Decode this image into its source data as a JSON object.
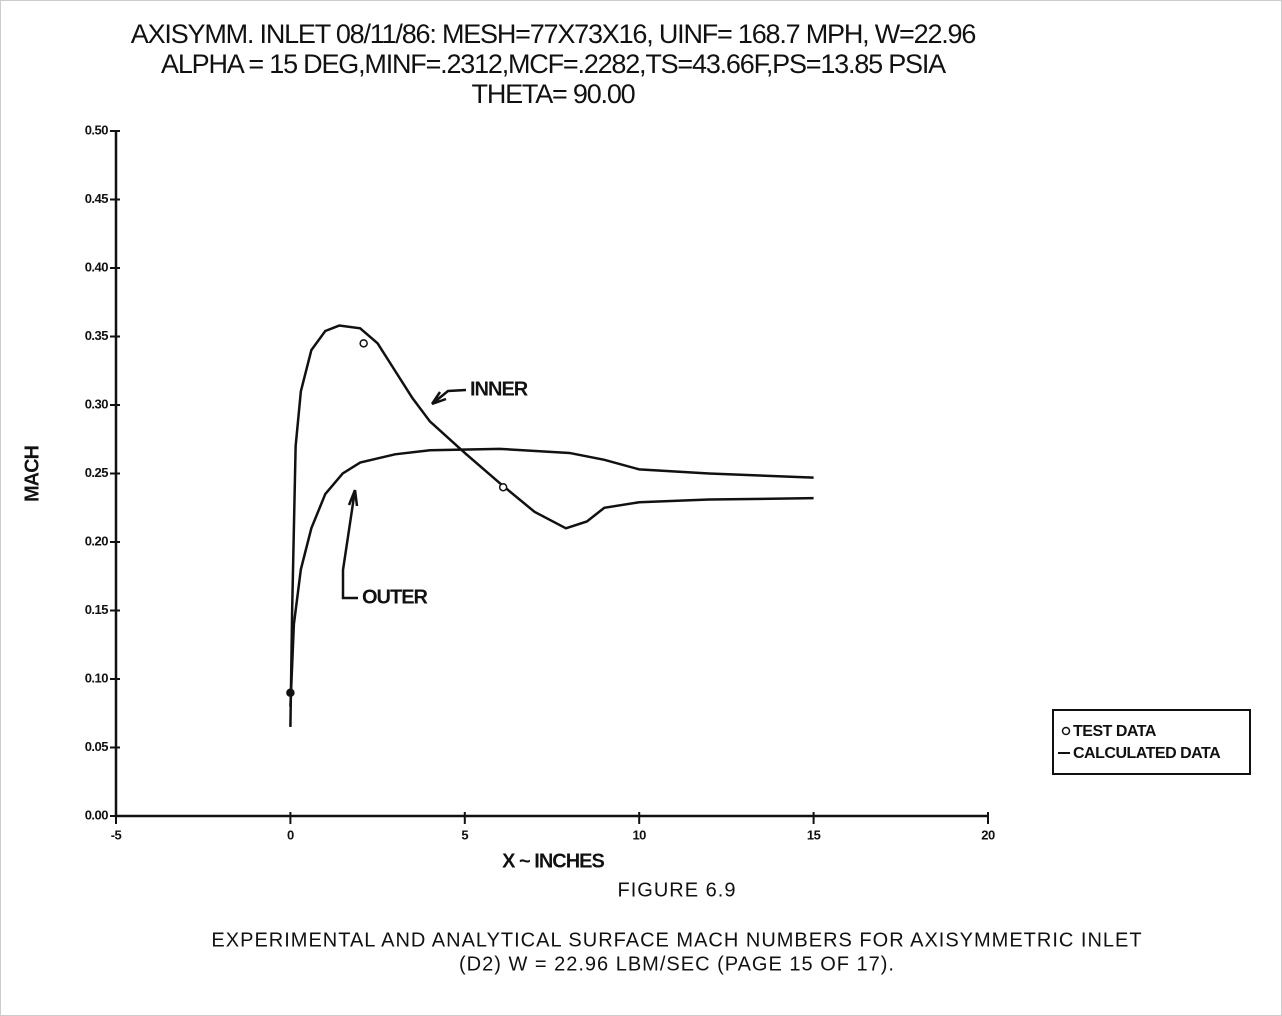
{
  "chart_data": {
    "type": "line",
    "title": [
      "AXISYMM. INLET 08/11/86: MESH=77X73X16, UINF= 168.7 MPH, W=22.96",
      "ALPHA = 15 DEG,MINF=.2312,MCF=.2282,TS=43.66F,PS=13.85 PSIA",
      "THETA=  90.00"
    ],
    "xlabel": "X ~ INCHES",
    "ylabel": "MACH",
    "xlim": [
      -5,
      20
    ],
    "ylim": [
      0,
      0.5
    ],
    "xticks": [
      -5,
      0,
      5,
      10,
      15,
      20
    ],
    "yticks": [
      {
        "value": 0,
        "label": "0.00"
      },
      0.05,
      {
        "value": 0.1,
        "label": "0.10"
      },
      0.15,
      {
        "value": 0.2,
        "label": "0.20"
      },
      0.25,
      {
        "value": 0.3,
        "label": "0.30"
      },
      0.35,
      {
        "value": 0.4,
        "label": "0.40"
      },
      0.45,
      {
        "value": 0.5,
        "label": "0.50"
      }
    ],
    "color": "#111111",
    "series": [
      {
        "name": "INNER",
        "x": [
          0,
          0.05,
          0.15,
          0.3,
          0.6,
          1.0,
          1.4,
          2.0,
          2.5,
          3.0,
          3.5,
          4.0,
          5.0,
          6.0,
          7.0,
          7.9,
          8.5,
          9.0,
          10,
          12,
          15
        ],
        "values": [
          0.065,
          0.15,
          0.27,
          0.31,
          0.34,
          0.354,
          0.358,
          0.356,
          0.345,
          0.325,
          0.305,
          0.288,
          0.265,
          0.243,
          0.222,
          0.21,
          0.215,
          0.225,
          0.229,
          0.231,
          0.232
        ]
      },
      {
        "name": "OUTER",
        "x": [
          0,
          0.1,
          0.3,
          0.6,
          1.0,
          1.5,
          2.0,
          3.0,
          4.0,
          6.0,
          8.0,
          9.0,
          10,
          12,
          15
        ],
        "values": [
          0.08,
          0.14,
          0.18,
          0.21,
          0.235,
          0.25,
          0.258,
          0.264,
          0.267,
          0.268,
          0.265,
          0.26,
          0.253,
          0.25,
          0.247
        ]
      }
    ],
    "test_data": {
      "x": [
        0,
        2.1,
        6.1
      ],
      "values": [
        0.09,
        0.345,
        0.24
      ]
    },
    "legend": {
      "test": "TEST DATA",
      "calculated": "CALCULATED DATA"
    },
    "figure": "FIGURE 6.9",
    "caption": [
      "EXPERIMENTAL AND ANALYTICAL SURFACE MACH NUMBERS FOR AXISYMMETRIC INLET",
      "(D2)  W =  22.96  LBM/SEC  (PAGE 15 OF 17)."
    ]
  }
}
